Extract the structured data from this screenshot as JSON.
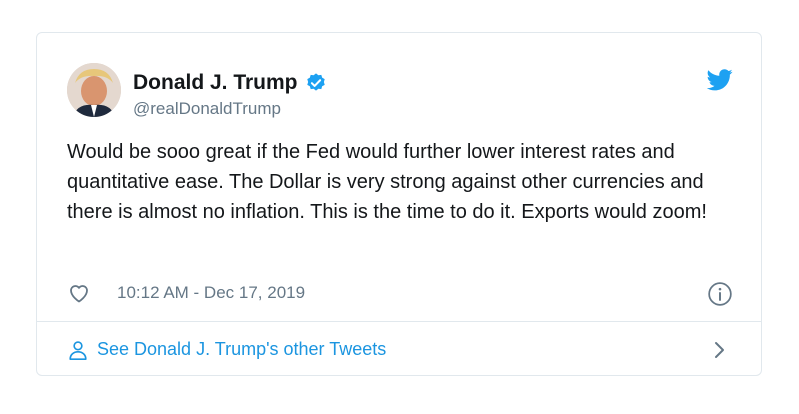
{
  "tweet": {
    "author_name": "Donald J. Trump",
    "handle": "@realDonaldTrump",
    "text": "Would be sooo great if the Fed would further lower interest rates and quantitative ease. The Dollar is very strong against other currencies and there is almost no inflation. This is the time to do it. Exports would zoom!",
    "timestamp": "10:12 AM - Dec 17, 2019",
    "footer_link": "See Donald J. Trump's other Tweets"
  },
  "icons": {
    "verified": "verified-badge-icon",
    "brand": "twitter-bird-icon",
    "like": "heart-icon",
    "info": "info-icon",
    "profile": "person-icon",
    "chevron": "chevron-right-icon"
  },
  "colors": {
    "accent": "#1da1f2",
    "link": "#1b95e0",
    "text": "#14171a",
    "muted": "#657786",
    "border": "#e1e8ed"
  }
}
